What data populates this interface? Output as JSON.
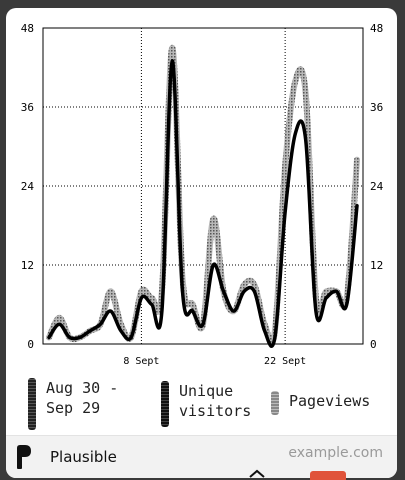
{
  "chart_data": {
    "type": "line",
    "yticks": [
      "48",
      "36",
      "24",
      "12",
      "0"
    ],
    "ylim": [
      0,
      48
    ],
    "xticks": [
      {
        "label": "8 Sept",
        "index": 9
      },
      {
        "label": "22 Sept",
        "index": 23
      }
    ],
    "grid": true,
    "series": [
      {
        "name": "Pageviews",
        "color": "#8a8a8a",
        "pattern": "dotted",
        "values": [
          1,
          4,
          1,
          1,
          2,
          3,
          8,
          3,
          1,
          8,
          7,
          8,
          45,
          10,
          6,
          3,
          19,
          8,
          5,
          9,
          9,
          3,
          2,
          27,
          40,
          38,
          7,
          8,
          8,
          7,
          28
        ]
      },
      {
        "name": "Unique visitors",
        "color": "#000000",
        "pattern": "solid",
        "values": [
          1,
          3,
          1,
          1,
          2,
          3,
          5,
          2,
          1,
          7,
          6,
          5,
          43,
          8,
          5,
          3,
          12,
          8,
          5,
          8,
          8,
          2,
          1,
          20,
          32,
          31,
          5,
          7,
          8,
          6,
          21
        ]
      }
    ]
  },
  "legend": {
    "date_range_line1": "Aug 30 -",
    "date_range_line2": "Sep 29",
    "unique_label_line1": "Unique",
    "unique_label_line2": "visitors",
    "pageviews_label": "Pageviews"
  },
  "footer": {
    "brand": "Plausible",
    "domain": "example.com"
  }
}
